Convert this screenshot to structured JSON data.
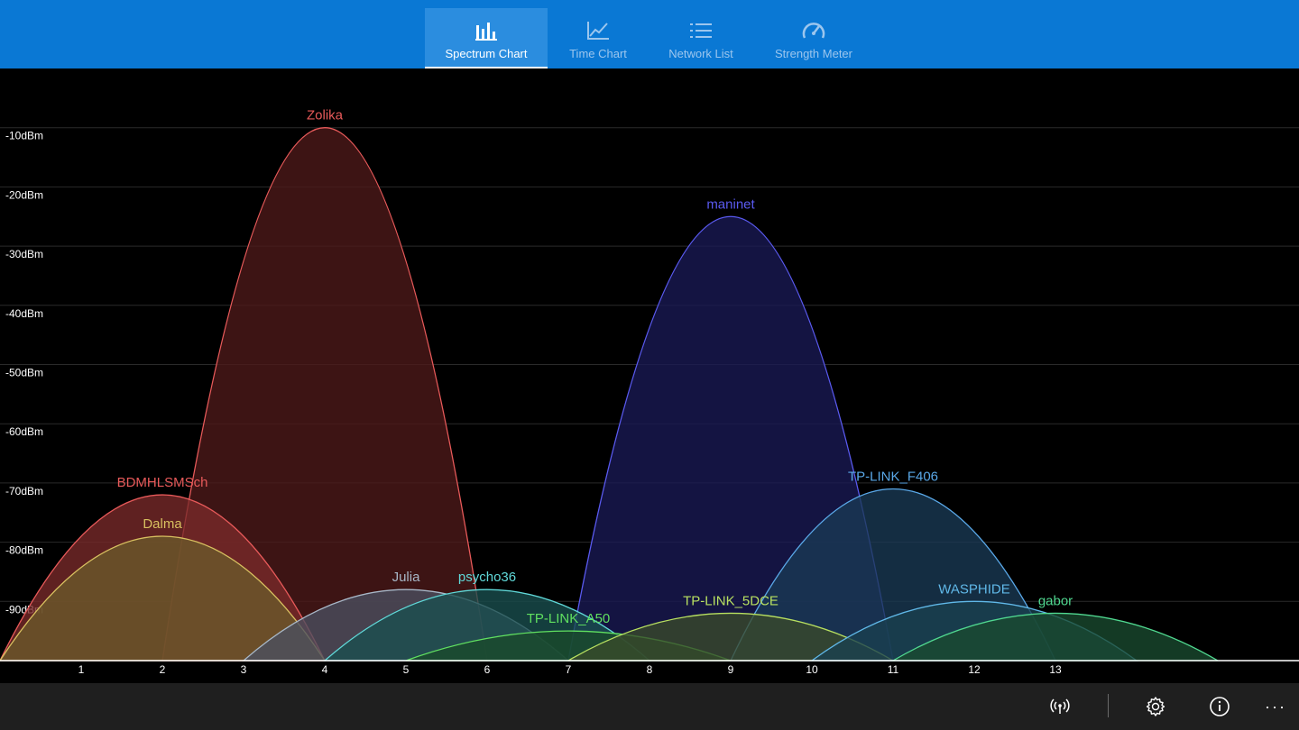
{
  "tabs": [
    {
      "label": "Spectrum Chart",
      "icon": "bar-chart-icon",
      "active": true
    },
    {
      "label": "Time Chart",
      "icon": "line-chart-icon",
      "active": false
    },
    {
      "label": "Network List",
      "icon": "list-icon",
      "active": false
    },
    {
      "label": "Strength Meter",
      "icon": "gauge-icon",
      "active": false
    }
  ],
  "bottom_bar": {
    "icons": [
      "wifi-scan-icon",
      "settings-gear-icon",
      "info-icon",
      "more-ellipsis-icon"
    ]
  },
  "chart_data": {
    "type": "area",
    "x_ticks": [
      1,
      2,
      3,
      4,
      5,
      6,
      7,
      8,
      9,
      10,
      11,
      12,
      13
    ],
    "y_ticks": [
      "-10dBm",
      "-20dBm",
      "-30dBm",
      "-40dBm",
      "-50dBm",
      "-60dBm",
      "-70dBm",
      "-80dBm",
      "-90dBm"
    ],
    "y_values": [
      -10,
      -20,
      -30,
      -40,
      -50,
      -60,
      -70,
      -80,
      -90
    ],
    "ylim": [
      -100,
      0
    ],
    "xlim": [
      0,
      15.2
    ],
    "grid": true,
    "series": [
      {
        "name": "Zolika",
        "center": 4,
        "signal": -10,
        "color": "#e85a5a",
        "fill": "#4e1a1a"
      },
      {
        "name": "maninet",
        "center": 9,
        "signal": -25,
        "color": "#5a5af0",
        "fill": "#1a1a55"
      },
      {
        "name": "BDMHLSMSch",
        "center": 2,
        "signal": -72,
        "color": "#e85a5a",
        "fill": "#7a2a2a"
      },
      {
        "name": "Dalma",
        "center": 2,
        "signal": -79,
        "color": "#d8c060",
        "fill": "#6a5a2a"
      },
      {
        "name": "TP-LINK_F406",
        "center": 11,
        "signal": -71,
        "color": "#5aa8e8",
        "fill": "#1a3a55"
      },
      {
        "name": "Julia",
        "center": 5,
        "signal": -88,
        "color": "#a8b8c8",
        "fill": "#4a5060"
      },
      {
        "name": "psycho36",
        "center": 6,
        "signal": -88,
        "color": "#60d8d8",
        "fill": "#1a5050"
      },
      {
        "name": "TP-LINK_A50",
        "center": 7,
        "signal": -95,
        "color": "#60e060",
        "fill": "#1a4a2a"
      },
      {
        "name": "TP-LINK_5DCE",
        "center": 9,
        "signal": -92,
        "color": "#b8e060",
        "fill": "#3a4a2a"
      },
      {
        "name": "WASPHIDE",
        "center": 12,
        "signal": -90,
        "color": "#60b8e8",
        "fill": "#1a4050"
      },
      {
        "name": "gabor",
        "center": 13,
        "signal": -92,
        "color": "#50d890",
        "fill": "#1a4a30"
      }
    ]
  }
}
